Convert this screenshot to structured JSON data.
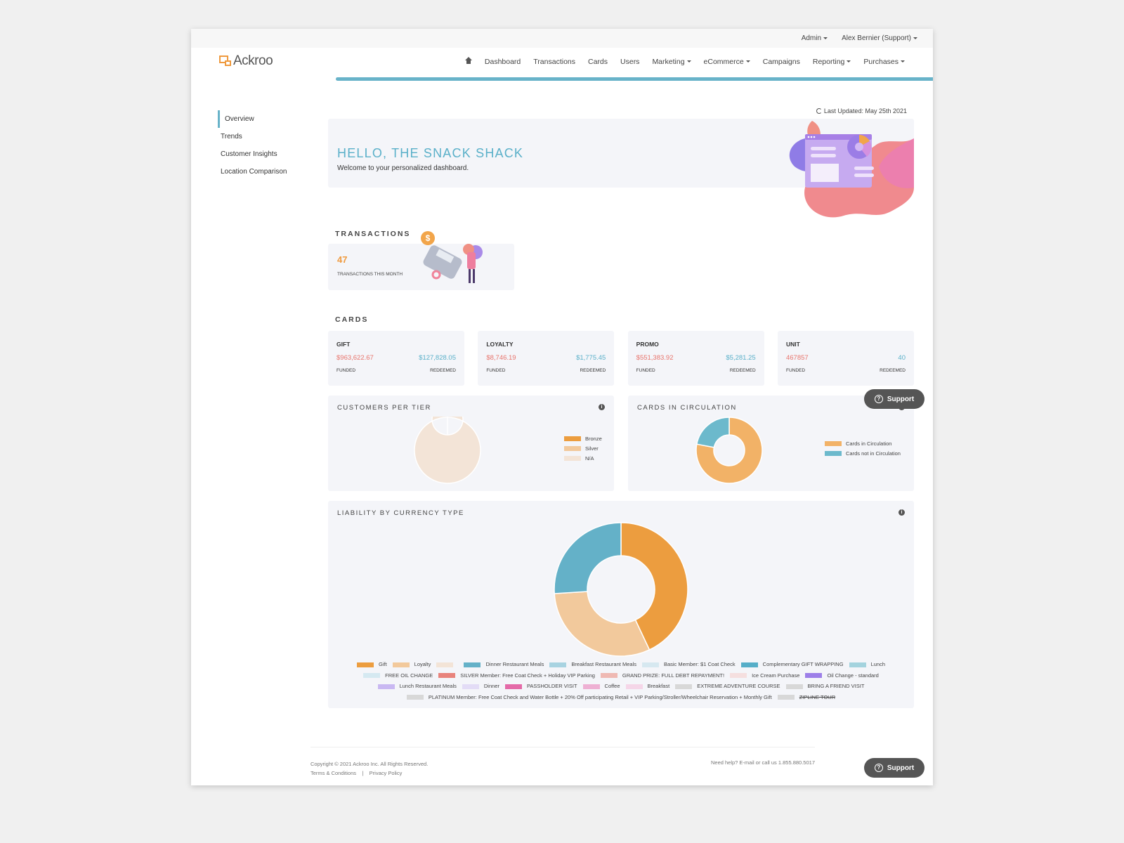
{
  "topbar": {
    "admin": "Admin",
    "user": "Alex Bernier (Support)"
  },
  "logo": {
    "text": "Ackroo"
  },
  "nav": {
    "items": [
      {
        "label": "Dashboard",
        "dropdown": false
      },
      {
        "label": "Transactions",
        "dropdown": false
      },
      {
        "label": "Cards",
        "dropdown": false
      },
      {
        "label": "Users",
        "dropdown": false
      },
      {
        "label": "Marketing",
        "dropdown": true
      },
      {
        "label": "eCommerce",
        "dropdown": true
      },
      {
        "label": "Campaigns",
        "dropdown": false
      },
      {
        "label": "Reporting",
        "dropdown": true
      },
      {
        "label": "Purchases",
        "dropdown": true
      }
    ]
  },
  "sidebar": {
    "items": [
      {
        "label": "Overview",
        "active": true
      },
      {
        "label": "Trends"
      },
      {
        "label": "Customer Insights"
      },
      {
        "label": "Location Comparison"
      }
    ]
  },
  "last_updated": "Last Updated: May 25th 2021",
  "hero": {
    "title": "HELLO, THE SNACK SHACK",
    "subtitle": "Welcome to your personalized dashboard."
  },
  "transactions": {
    "section_title": "TRANSACTIONS",
    "count": "47",
    "label": "TRANSACTIONS THIS MONTH"
  },
  "cards": {
    "section_title": "CARDS",
    "funded_label": "FUNDED",
    "redeemed_label": "REDEEMED",
    "items": [
      {
        "name": "GIFT",
        "funded": "$963,622.67",
        "redeemed": "$127,828.05"
      },
      {
        "name": "LOYALTY",
        "funded": "$8,746.19",
        "redeemed": "$1,775.45"
      },
      {
        "name": "PROMO",
        "funded": "$551,383.92",
        "redeemed": "$5,281.25"
      },
      {
        "name": "UNIT",
        "funded": "467857",
        "redeemed": "40"
      }
    ]
  },
  "colors": {
    "accent": "#68b3c9",
    "funded": "#e8756d",
    "redeemed": "#5ab0c9",
    "orange": "#ef9a3e",
    "panel": "#f4f5f9"
  },
  "chart_data": [
    {
      "type": "pie",
      "title": "CUSTOMERS PER TIER",
      "categories": [
        "Bronze",
        "Silver",
        "N/A"
      ],
      "values": [
        0,
        0,
        100
      ],
      "colors": [
        "#ec9d3f",
        "#f2c99c",
        "#f3e4d7"
      ],
      "legend_position": "right"
    },
    {
      "type": "pie",
      "title": "CARDS IN CIRCULATION",
      "categories": [
        "Cards in Circulation",
        "Cards not in Circulation"
      ],
      "values": [
        78,
        22
      ],
      "colors": [
        "#f2b267",
        "#6cb9cc"
      ],
      "legend_position": "right"
    },
    {
      "type": "pie",
      "title": "LIABILITY BY CURRENCY TYPE",
      "categories": [
        "Gift",
        "Loyalty",
        "",
        "Dinner Restaurant Meals",
        "Breakfast Restaurant Meals",
        "Basic Member: $1 Coat Check",
        "Complementary GIFT WRAPPING",
        "Lunch",
        "FREE OIL CHANGE",
        "SILVER Member: Free Coat Check + Holiday VIP Parking",
        "GRAND PRIZE: FULL DEBT REPAYMENT!",
        "Ice Cream Purchase",
        "Oil Change - standard",
        "Lunch Restaurant Meals",
        "Dinner",
        "PASSHOLDER VISIT",
        "Coffee",
        "Breakfast",
        "EXTREME ADVENTURE COURSE",
        "BRING A FRIEND VISIT",
        "PLATINUM Member: Free Coat Check and Water Bottle + 20% Off participating Retail + VIP Parking/Stroller/Wheelchair Reservation + Monthly Gift",
        "ZIPLINE TOUR"
      ],
      "values": [
        43,
        31,
        0,
        26,
        0,
        0,
        0,
        0,
        0,
        0,
        0,
        0,
        0,
        0,
        0,
        0,
        0,
        0,
        0,
        0,
        0,
        0
      ],
      "colors": [
        "#ec9d3f",
        "#f2c99c",
        "#f3e4d7",
        "#64b1c8",
        "#a8d3e1",
        "#d6e8f0",
        "#56aec8",
        "#a4d3de",
        "#d5e9f1",
        "#e8837c",
        "#efb9b3",
        "#f5dfdf",
        "#9d7fe8",
        "#c9b8f2",
        "#e3dcf6",
        "#e46aa8",
        "#eeb0d3",
        "#f5d6e8",
        "#d8d8d8",
        "#d8d8d8",
        "#d8d8d8",
        "#d8d8d8"
      ],
      "hidden": [
        "ZIPLINE TOUR"
      ],
      "legend_position": "bottom"
    }
  ],
  "footer": {
    "copyright": "Copyright © 2021 Ackroo Inc. All Rights Reserved.",
    "terms": "Terms & Conditions",
    "separator": "|",
    "privacy": "Privacy Policy",
    "help": "Need help? E-mail or call us 1.855.880.5017"
  },
  "support": {
    "label": "Support"
  }
}
